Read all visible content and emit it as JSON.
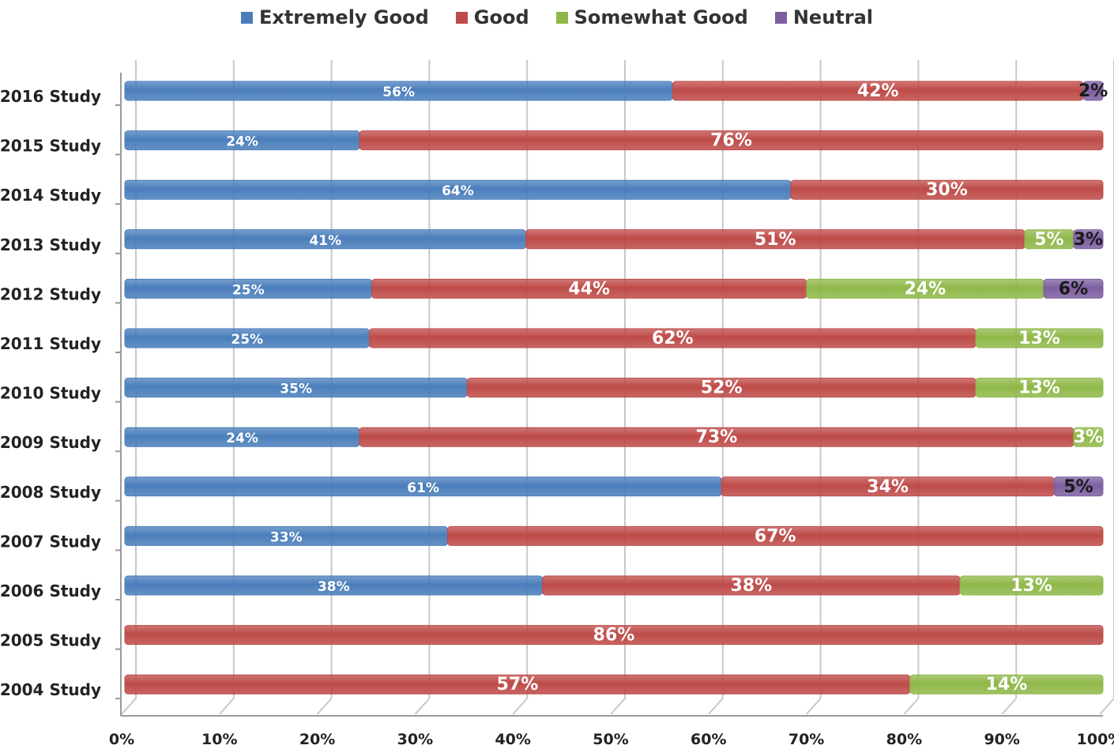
{
  "chart_data": {
    "type": "bar",
    "orientation": "horizontal",
    "stacked": "100%",
    "legend_position": "top",
    "grid": true,
    "xlim": [
      0,
      100
    ],
    "x_ticks": [
      "0%",
      "10%",
      "20%",
      "30%",
      "40%",
      "50%",
      "60%",
      "70%",
      "80%",
      "90%",
      "100%"
    ],
    "categories": [
      "2016 Study",
      "2015 Study",
      "2014 Study",
      "2013 Study",
      "2012 Study",
      "2011 Study",
      "2010 Study",
      "2009 Study",
      "2008 Study",
      "2007 Study",
      "2006 Study",
      "2005 Study",
      "2004 Study"
    ],
    "series": [
      {
        "name": "Extremely Good",
        "color": "#4a7ebb",
        "values": [
          56,
          24,
          64,
          41,
          25,
          25,
          35,
          24,
          61,
          33,
          38,
          0,
          0
        ]
      },
      {
        "name": "Good",
        "color": "#be4b48",
        "values": [
          42,
          76,
          30,
          51,
          44,
          62,
          52,
          73,
          34,
          67,
          38,
          86,
          57
        ]
      },
      {
        "name": "Somewhat Good",
        "color": "#8fb849",
        "values": [
          0,
          0,
          0,
          5,
          24,
          13,
          13,
          3,
          0,
          0,
          13,
          0,
          14
        ]
      },
      {
        "name": "Neutral",
        "color": "#7d5fa0",
        "values": [
          2,
          0,
          0,
          3,
          6,
          0,
          0,
          0,
          5,
          0,
          0,
          0,
          0
        ]
      }
    ]
  }
}
